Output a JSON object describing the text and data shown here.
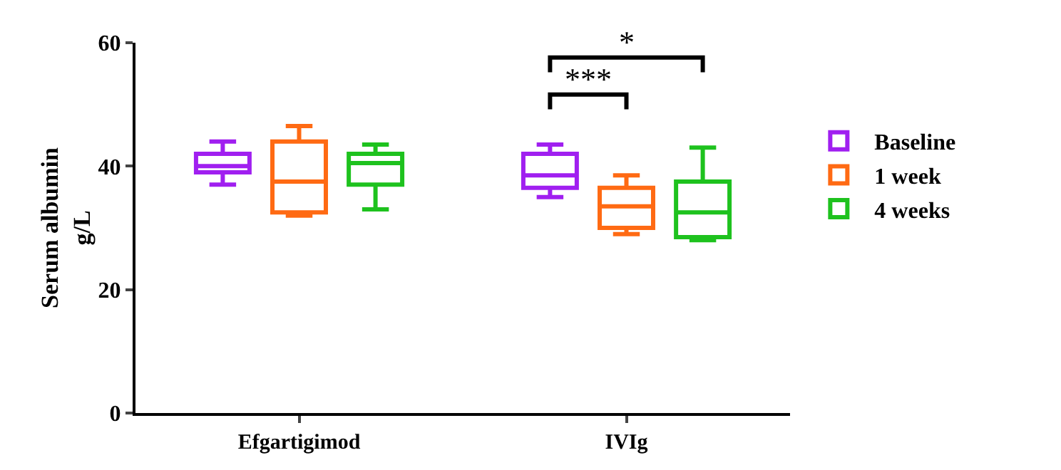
{
  "chart_data": {
    "type": "box",
    "ylabel": "Serum albumin g/L",
    "categories": [
      "Efgartigimod",
      "IVIg"
    ],
    "series": [
      {
        "name": "Baseline",
        "color": "#a01ff0",
        "boxes": [
          {
            "low": 37,
            "q1": 39,
            "median": 40,
            "q3": 42,
            "high": 44
          },
          {
            "low": 35,
            "q1": 36.5,
            "median": 38.5,
            "q3": 42,
            "high": 43.5
          }
        ]
      },
      {
        "name": "1 week",
        "color": "#ff6a13",
        "boxes": [
          {
            "low": 32,
            "q1": 32.5,
            "median": 37.5,
            "q3": 44,
            "high": 46.5
          },
          {
            "low": 29,
            "q1": 30,
            "median": 33.5,
            "q3": 36.5,
            "high": 38.5
          }
        ]
      },
      {
        "name": "4 weeks",
        "color": "#1ec21e",
        "boxes": [
          {
            "low": 33,
            "q1": 37,
            "median": 40.5,
            "q3": 42,
            "high": 43.5
          },
          {
            "low": 28,
            "q1": 28.5,
            "median": 32.5,
            "q3": 37.5,
            "high": 43
          }
        ]
      }
    ],
    "ylim": [
      0,
      60
    ],
    "yticks": [
      0,
      20,
      40,
      60
    ],
    "grid": false,
    "legend": "right",
    "annotations": [
      "***",
      "*"
    ]
  }
}
